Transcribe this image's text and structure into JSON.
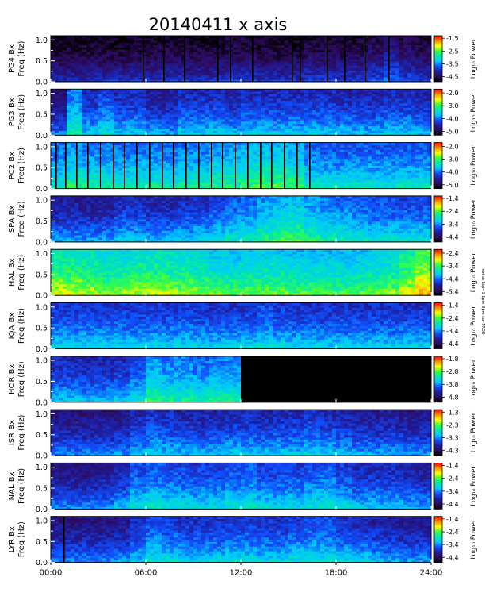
{
  "chart_data": {
    "type": "heatmap",
    "title": "20140411  x axis",
    "xlabel": "",
    "x_ticks": [
      "00:00",
      "06:00",
      "12:00",
      "18:00",
      "24:00"
    ],
    "xlim": [
      0,
      24
    ],
    "y_ticks": [
      "0.0",
      "0.5",
      "1.0"
    ],
    "ylim": [
      0,
      1.1
    ],
    "ylabel_line2": "Freq (Hz)",
    "colorbar_label": "Log₁₀ Power",
    "colormap": [
      "#000000",
      "#2d0a5a",
      "#1e1ea0",
      "#1050ff",
      "#00c8ff",
      "#00e6b4",
      "#3cff3c",
      "#ffff00",
      "#ff8c00",
      "#ff0000"
    ],
    "panels": [
      {
        "station": "PG4 Bx",
        "cb_ticks": [
          "-1.5",
          "-2.5",
          "-3.5",
          "-4.5"
        ],
        "cb_range": [
          -4.9,
          -1.3
        ],
        "intensity": [
          0.08,
          0.08,
          0.09,
          0.09,
          0.09,
          0.1,
          0.1,
          0.1,
          0.1,
          0.1,
          0.1,
          0.12,
          0.12,
          0.1,
          0.1,
          0.1,
          0.12,
          0.12,
          0.12,
          0.12,
          0.15,
          0.2,
          0.15,
          0.12
        ],
        "gaps": [
          5.8,
          7.1,
          8.4,
          10.5,
          11.3,
          12.7,
          15.2,
          15.7,
          17.4,
          18.5,
          19.8,
          21.3
        ]
      },
      {
        "station": "PG3 Bx",
        "cb_ticks": [
          "-2.0",
          "-3.0",
          "-4.0",
          "-5.0"
        ],
        "cb_range": [
          -5.3,
          -1.7
        ],
        "intensity": [
          0.2,
          0.42,
          0.3,
          0.35,
          0.3,
          0.3,
          0.25,
          0.25,
          0.3,
          0.3,
          0.3,
          0.28,
          0.3,
          0.3,
          0.3,
          0.3,
          0.3,
          0.3,
          0.28,
          0.28,
          0.28,
          0.3,
          0.3,
          0.28
        ],
        "gaps": []
      },
      {
        "station": "PC2 Bx",
        "cb_ticks": [
          "-2.0",
          "-3.0",
          "-4.0",
          "-5.0"
        ],
        "cb_range": [
          -5.3,
          -1.7
        ],
        "intensity": [
          0.4,
          0.45,
          0.42,
          0.42,
          0.4,
          0.42,
          0.42,
          0.4,
          0.42,
          0.42,
          0.45,
          0.45,
          0.48,
          0.5,
          0.5,
          0.48,
          0.4,
          0.38,
          0.38,
          0.38,
          0.38,
          0.38,
          0.38,
          0.38
        ],
        "gaps": [
          0.3,
          0.9,
          1.6,
          2.3,
          3.1,
          3.9,
          4.6,
          5.4,
          6.2,
          7.0,
          7.7,
          8.5,
          9.3,
          10.1,
          10.8,
          11.6,
          12.4,
          13.2,
          13.9,
          14.7,
          15.5,
          16.3
        ]
      },
      {
        "station": "SPA Bx",
        "cb_ticks": [
          "-1.4",
          "-2.4",
          "-3.4",
          "-4.4"
        ],
        "cb_range": [
          -4.8,
          -1.2
        ],
        "intensity": [
          0.25,
          0.25,
          0.25,
          0.25,
          0.3,
          0.3,
          0.28,
          0.28,
          0.3,
          0.32,
          0.35,
          0.38,
          0.4,
          0.45,
          0.48,
          0.5,
          0.45,
          0.42,
          0.4,
          0.38,
          0.36,
          0.36,
          0.35,
          0.35
        ],
        "gaps": []
      },
      {
        "station": "HAL Bx",
        "cb_ticks": [
          "-2.4",
          "-3.4",
          "-4.4",
          "-5.4"
        ],
        "cb_range": [
          -5.7,
          -2.1
        ],
        "intensity": [
          0.6,
          0.6,
          0.58,
          0.55,
          0.55,
          0.58,
          0.58,
          0.58,
          0.56,
          0.55,
          0.52,
          0.5,
          0.52,
          0.52,
          0.52,
          0.5,
          0.5,
          0.5,
          0.5,
          0.5,
          0.52,
          0.55,
          0.62,
          0.7
        ],
        "gaps": []
      },
      {
        "station": "IQA Bx",
        "cb_ticks": [
          "-1.4",
          "-2.4",
          "-3.4",
          "-4.4"
        ],
        "cb_range": [
          -4.8,
          -1.2
        ],
        "intensity": [
          0.33,
          0.33,
          0.33,
          0.33,
          0.33,
          0.33,
          0.33,
          0.33,
          0.33,
          0.32,
          0.32,
          0.32,
          0.33,
          0.36,
          0.33,
          0.32,
          0.32,
          0.32,
          0.32,
          0.32,
          0.32,
          0.32,
          0.32,
          0.32
        ],
        "gaps": []
      },
      {
        "station": "HOR Bx",
        "cb_ticks": [
          "-1.8",
          "-2.8",
          "-3.8",
          "-4.8"
        ],
        "cb_range": [
          -5.2,
          -1.6
        ],
        "intensity": [
          0.3,
          0.3,
          0.28,
          0.28,
          0.3,
          0.35,
          0.45,
          0.42,
          0.42,
          0.4,
          0.42,
          0.42,
          0,
          0,
          0,
          0,
          0,
          0,
          0,
          0,
          0,
          0,
          0,
          0
        ],
        "gaps": []
      },
      {
        "station": "ISR Bx",
        "cb_ticks": [
          "-1.3",
          "-2.3",
          "-3.3",
          "-4.3"
        ],
        "cb_range": [
          -4.7,
          -1.1
        ],
        "intensity": [
          0.22,
          0.22,
          0.22,
          0.22,
          0.24,
          0.28,
          0.32,
          0.3,
          0.28,
          0.28,
          0.28,
          0.3,
          0.3,
          0.28,
          0.3,
          0.3,
          0.32,
          0.3,
          0.28,
          0.26,
          0.26,
          0.26,
          0.24,
          0.24
        ],
        "gaps": []
      },
      {
        "station": "NAL Bx",
        "cb_ticks": [
          "-1.4",
          "-2.4",
          "-3.4",
          "-4.4"
        ],
        "cb_range": [
          -4.8,
          -1.2
        ],
        "intensity": [
          0.22,
          0.22,
          0.22,
          0.24,
          0.28,
          0.36,
          0.38,
          0.36,
          0.35,
          0.34,
          0.34,
          0.36,
          0.38,
          0.34,
          0.34,
          0.34,
          0.36,
          0.38,
          0.34,
          0.3,
          0.3,
          0.3,
          0.28,
          0.26
        ],
        "gaps": []
      },
      {
        "station": "LYR Bx",
        "cb_ticks": [
          "-1.4",
          "-2.4",
          "-3.4",
          "-4.4"
        ],
        "cb_range": [
          -4.8,
          -1.2
        ],
        "intensity": [
          0.22,
          0.22,
          0.22,
          0.22,
          0.24,
          0.3,
          0.36,
          0.34,
          0.32,
          0.32,
          0.32,
          0.34,
          0.34,
          0.32,
          0.32,
          0.34,
          0.36,
          0.36,
          0.32,
          0.3,
          0.28,
          0.26,
          0.24,
          0.24
        ],
        "gaps": [
          0.8
        ]
      }
    ],
    "side_note": "not at Lsp=1 1pm-3pm sur-PROD"
  }
}
